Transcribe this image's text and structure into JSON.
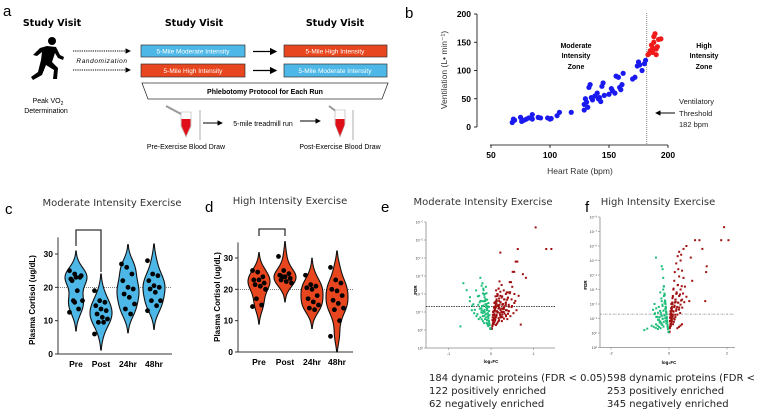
{
  "panel_a": {
    "letter": "a",
    "study_visit_1": "Study Visit",
    "study_visit_2": "Study Visit",
    "study_visit_3": "Study Visit",
    "peak_vo2": "Peak VO",
    "peak_vo2_sub": "2",
    "determination": "Determination",
    "randomization": "Randomization",
    "visit2_top": "5-Mile Moderate Intensity",
    "visit2_bottom": "5-Mile High Intensity",
    "visit3_top": "5-Mile High Intensity",
    "visit3_bottom": "5-Mile Moderate Intensity",
    "phlebotomy": "Phlebotomy Protocol for Each Run",
    "treadmill": "5-mile treadmill run",
    "pre_draw": "Pre-Exercise Blood Draw",
    "post_draw": "Post-Exercise Blood Draw",
    "colors": {
      "moderate": "#4DB8E8",
      "high": "#E8461E"
    }
  },
  "chart_data": [
    {
      "id": "b",
      "type": "scatter",
      "letter": "b",
      "xlabel": "Heart Rate (bpm)",
      "ylabel": "Ventilation (L• min⁻¹)",
      "xlim": [
        50,
        200
      ],
      "ylim": [
        0,
        200
      ],
      "xticks": [
        "50",
        "100",
        "150",
        "200"
      ],
      "yticks": [
        "0",
        "50",
        "100",
        "150",
        "200"
      ],
      "threshold_bpm": 182,
      "annotations": {
        "moderate_zone": [
          "Moderate",
          "Intensity",
          "Zone"
        ],
        "high_zone": [
          "High",
          "Intensity",
          "Zone"
        ],
        "threshold": [
          "Ventilatory",
          "Threshold",
          "182 bpm"
        ]
      },
      "series": [
        {
          "name": "Moderate",
          "color": "#1A1AF0",
          "points": [
            [
              68,
              8
            ],
            [
              69,
              14
            ],
            [
              70,
              12
            ],
            [
              75,
              17
            ],
            [
              76,
              10
            ],
            [
              78,
              12
            ],
            [
              80,
              14
            ],
            [
              82,
              16
            ],
            [
              85,
              22
            ],
            [
              85,
              14
            ],
            [
              90,
              17
            ],
            [
              92,
              16
            ],
            [
              98,
              16
            ],
            [
              100,
              14
            ],
            [
              101,
              15
            ],
            [
              106,
              20
            ],
            [
              108,
              26
            ],
            [
              118,
              26
            ],
            [
              129,
              30
            ],
            [
              129,
              40
            ],
            [
              130,
              50
            ],
            [
              131,
              44
            ],
            [
              132,
              35
            ],
            [
              133,
              70
            ],
            [
              134,
              75
            ],
            [
              135,
              52
            ],
            [
              136,
              48
            ],
            [
              138,
              55
            ],
            [
              140,
              60
            ],
            [
              141,
              50
            ],
            [
              142,
              52
            ],
            [
              143,
              45
            ],
            [
              144,
              72
            ],
            [
              145,
              78
            ],
            [
              146,
              56
            ],
            [
              150,
              58
            ],
            [
              152,
              68
            ],
            [
              153,
              64
            ],
            [
              155,
              60
            ],
            [
              156,
              90
            ],
            [
              158,
              88
            ],
            [
              159,
              70
            ],
            [
              160,
              66
            ],
            [
              161,
              75
            ],
            [
              162,
              95
            ],
            [
              170,
              85
            ],
            [
              172,
              88
            ],
            [
              174,
              108
            ],
            [
              175,
              115
            ],
            [
              176,
              110
            ],
            [
              178,
              100
            ],
            [
              180,
              112
            ],
            [
              181,
              118
            ]
          ]
        },
        {
          "name": "High",
          "color": "#F01A1A",
          "points": [
            [
              183,
              128
            ],
            [
              184,
              130
            ],
            [
              185,
              135
            ],
            [
              186,
              145
            ],
            [
              187,
              140
            ],
            [
              188,
              160
            ],
            [
              188,
              150
            ],
            [
              189,
              165
            ],
            [
              190,
              138
            ],
            [
              191,
              142
            ],
            [
              192,
              155
            ],
            [
              194,
              156
            ],
            [
              187,
              132
            ],
            [
              190,
              128
            ]
          ]
        }
      ]
    },
    {
      "id": "c",
      "type": "violin",
      "letter": "c",
      "title": "Moderate Intensity Exercise",
      "ylabel": "Plasma Cortisol (ug/dL)",
      "ylim": [
        0,
        35
      ],
      "yticks": [
        "0",
        "10",
        "20",
        "30"
      ],
      "reference_line": 20,
      "color": "#4DB8E8",
      "categories": [
        "Pre",
        "Post",
        "24hr",
        "48hr"
      ],
      "values": [
        [
          25,
          24,
          23,
          22.5,
          23,
          23.5,
          22,
          19,
          16,
          16,
          13.5,
          12.5,
          15.5
        ],
        [
          19,
          16,
          15.5,
          14.5,
          13.5,
          13,
          12,
          11,
          10.5,
          9.5,
          9.5,
          6
        ],
        [
          27,
          26,
          24,
          22,
          20,
          19.5,
          18,
          17,
          15,
          13.5,
          12
        ],
        [
          28,
          24,
          23.5,
          22,
          20.5,
          20,
          19.5,
          18.5,
          16,
          16,
          14.5,
          13
        ]
      ],
      "significance_bracket": [
        "Pre",
        "Post"
      ]
    },
    {
      "id": "d",
      "type": "violin",
      "letter": "d",
      "title": "High Intensity Exercise",
      "ylabel": "Plasma Cortisol (ug/dL)",
      "ylim": [
        0,
        35
      ],
      "yticks": [
        "0",
        "10",
        "20",
        "30"
      ],
      "reference_line": 20,
      "color": "#E8461E",
      "categories": [
        "Pre",
        "Post",
        "24hr",
        "48hr"
      ],
      "values": [
        [
          26,
          25.5,
          24,
          23,
          23,
          22,
          21.5,
          21,
          20,
          17,
          15,
          14.5
        ],
        [
          30.5,
          26,
          25,
          24.5,
          24,
          23.5,
          23,
          22.5,
          22,
          24
        ],
        [
          24.5,
          21.5,
          21,
          20.5,
          20,
          18,
          17,
          16,
          15,
          14,
          13.5
        ],
        [
          27,
          23,
          22,
          20,
          19.5,
          18,
          16.5,
          15.5,
          14,
          13.5,
          10,
          5
        ]
      ],
      "significance_bracket": [
        "Pre",
        "Post"
      ]
    },
    {
      "id": "e",
      "type": "scatter",
      "letter": "e",
      "title": "Moderate Intensity Exercise",
      "xlabel": "log₂FC",
      "ylabel": "FDR",
      "xlim": [
        -1.5,
        1.5
      ],
      "ylim": [
        -1,
        6
      ],
      "xticks": [
        "-1",
        "0",
        "1"
      ],
      "yticks": [
        "10¹",
        "10⁰",
        "10⁻¹",
        "10⁻²",
        "10⁻³",
        "10⁻⁴",
        "10⁻⁵",
        "10⁻⁶"
      ],
      "threshold_neglog10_fdr": 1.3,
      "series": [
        {
          "name": "positively enriched",
          "color": "#A01010",
          "points": [
            [
              0.02,
              0.1
            ],
            [
              0.05,
              0.4
            ],
            [
              0.08,
              0.8
            ],
            [
              0.1,
              1.2
            ],
            [
              0.12,
              1.6
            ],
            [
              0.15,
              2.0
            ],
            [
              0.18,
              2.3
            ],
            [
              0.2,
              2.7
            ],
            [
              0.25,
              2.5
            ],
            [
              0.3,
              2.2
            ],
            [
              0.35,
              2.0
            ],
            [
              0.4,
              1.8
            ],
            [
              0.45,
              2.1
            ],
            [
              0.5,
              2.4
            ],
            [
              0.55,
              1.5
            ],
            [
              0.6,
              1.1
            ],
            [
              0.7,
              0.3
            ],
            [
              0.1,
              0.6
            ],
            [
              0.15,
              1.0
            ],
            [
              0.2,
              1.4
            ],
            [
              0.25,
              1.8
            ],
            [
              0.3,
              1.0
            ],
            [
              0.35,
              1.4
            ],
            [
              0.4,
              0.9
            ],
            [
              0.12,
              2.2
            ],
            [
              0.22,
              1.9
            ],
            [
              0.28,
              1.2
            ],
            [
              0.05,
              1.0
            ],
            [
              0.08,
              1.5
            ],
            [
              0.18,
              0.5
            ],
            [
              0.32,
              1.7
            ],
            [
              0.42,
              1.3
            ],
            [
              0.55,
              2.0
            ],
            [
              0.65,
              1.9
            ],
            [
              0.75,
              3.1
            ],
            [
              0.82,
              2.9
            ],
            [
              0.62,
              3.8
            ],
            [
              0.58,
              3.8
            ],
            [
              0.22,
              4.3
            ],
            [
              0.63,
              4.5
            ],
            [
              1.05,
              5.7
            ],
            [
              1.3,
              4.5
            ],
            [
              1.42,
              4.5
            ]
          ]
        },
        {
          "name": "negatively enriched",
          "color": "#1EBE7A",
          "points": [
            [
              -0.02,
              0.1
            ],
            [
              -0.05,
              0.5
            ],
            [
              -0.08,
              0.9
            ],
            [
              -0.1,
              1.3
            ],
            [
              -0.12,
              1.7
            ],
            [
              -0.15,
              2.0
            ],
            [
              -0.18,
              2.3
            ],
            [
              -0.2,
              1.6
            ],
            [
              -0.22,
              1.1
            ],
            [
              -0.25,
              0.7
            ],
            [
              -0.28,
              1.9
            ],
            [
              -0.1,
              0.4
            ],
            [
              -0.15,
              1.0
            ],
            [
              -0.06,
              1.5
            ],
            [
              -0.12,
              2.4
            ],
            [
              -0.3,
              1.4
            ],
            [
              -0.35,
              2.2
            ],
            [
              -0.45,
              1.1
            ],
            [
              -0.5,
              1.6
            ],
            [
              -0.25,
              2.9
            ],
            [
              -0.65,
              2.6
            ],
            [
              -0.72,
              0.2
            ],
            [
              -0.2,
              2.6
            ]
          ]
        }
      ],
      "summary": [
        "184 dynamic proteins (FDR < 0.05)",
        "122 positively enriched",
        "62 negatively enriched"
      ]
    },
    {
      "id": "f",
      "type": "scatter",
      "letter": "f",
      "title": "High Intensity Exercise",
      "xlabel": "log₂FC",
      "ylabel": "FDR",
      "xlim": [
        -2.7,
        2.2
      ],
      "ylim": [
        -1,
        8
      ],
      "xticks": [
        "-2",
        "0",
        "2"
      ],
      "yticks": [
        "10¹",
        "10⁰",
        "10⁻¹",
        "10⁻²",
        "10⁻³",
        "10⁻⁴",
        "10⁻⁵",
        "10⁻⁶",
        "10⁻⁷",
        "10⁻⁸"
      ],
      "threshold_neglog10_fdr": 1.3,
      "series": [
        {
          "name": "positively enriched",
          "color": "#A01010",
          "points": [
            [
              0.02,
              0.1
            ],
            [
              0.05,
              0.6
            ],
            [
              0.08,
              1.2
            ],
            [
              0.1,
              1.8
            ],
            [
              0.12,
              2.4
            ],
            [
              0.15,
              3.0
            ],
            [
              0.18,
              3.6
            ],
            [
              0.2,
              4.2
            ],
            [
              0.25,
              4.8
            ],
            [
              0.3,
              5.3
            ],
            [
              0.35,
              5.6
            ],
            [
              0.4,
              5.0
            ],
            [
              0.45,
              4.3
            ],
            [
              0.5,
              3.8
            ],
            [
              0.55,
              3.2
            ],
            [
              0.6,
              2.5
            ],
            [
              0.7,
              2.2
            ],
            [
              0.1,
              0.9
            ],
            [
              0.15,
              1.5
            ],
            [
              0.2,
              2.1
            ],
            [
              0.25,
              2.7
            ],
            [
              0.3,
              3.3
            ],
            [
              0.35,
              3.9
            ],
            [
              0.4,
              3.0
            ],
            [
              0.45,
              2.3
            ],
            [
              0.05,
              1.5
            ],
            [
              0.08,
              2.0
            ],
            [
              0.22,
              1.1
            ],
            [
              0.28,
              1.8
            ],
            [
              0.32,
              4.4
            ],
            [
              0.42,
              5.4
            ],
            [
              0.5,
              5.8
            ],
            [
              0.6,
              6.0
            ],
            [
              0.75,
              5.2
            ],
            [
              0.9,
              6.4
            ],
            [
              1.05,
              6.4
            ],
            [
              1.15,
              5.8
            ],
            [
              1.3,
              4.6
            ],
            [
              1.28,
              4.2
            ],
            [
              1.25,
              2.2
            ],
            [
              0.45,
              0.6
            ],
            [
              1.9,
              7.3
            ],
            [
              1.8,
              6.4
            ],
            [
              2.05,
              6.4
            ],
            [
              0.8,
              3.6
            ]
          ]
        },
        {
          "name": "negatively enriched",
          "color": "#1EBE7A",
          "points": [
            [
              -0.02,
              0.1
            ],
            [
              -0.05,
              0.5
            ],
            [
              -0.08,
              1.0
            ],
            [
              -0.1,
              1.5
            ],
            [
              -0.12,
              2.0
            ],
            [
              -0.15,
              2.6
            ],
            [
              -0.18,
              3.2
            ],
            [
              -0.2,
              3.8
            ],
            [
              -0.22,
              4.4
            ],
            [
              -0.25,
              2.2
            ],
            [
              -0.28,
              1.4
            ],
            [
              -0.3,
              0.8
            ],
            [
              -0.35,
              1.8
            ],
            [
              -0.4,
              1.1
            ],
            [
              -0.45,
              0.6
            ],
            [
              -0.5,
              1.3
            ],
            [
              -0.6,
              0.5
            ],
            [
              -0.75,
              0.3
            ],
            [
              -0.85,
              0.2
            ],
            [
              -0.15,
              1.2
            ],
            [
              -0.2,
              3.0
            ],
            [
              -0.25,
              4.6
            ],
            [
              -0.3,
              2.8
            ],
            [
              -0.45,
              5.2
            ],
            [
              -0.5,
              2.0
            ],
            [
              -0.55,
              1.6
            ]
          ]
        }
      ],
      "summary": [
        "598 dynamic proteins (FDR < 0.05)",
        "253 positively enriched",
        "345 negatively enriched"
      ]
    }
  ]
}
